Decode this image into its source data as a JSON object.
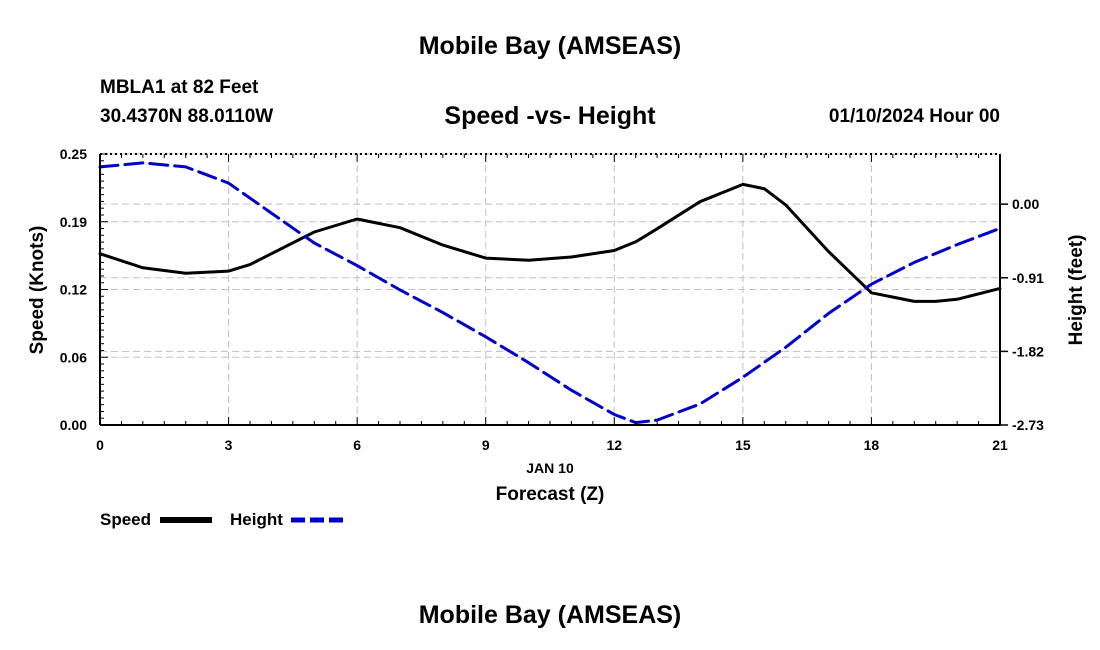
{
  "header": {
    "title": "Mobile Bay (AMSEAS)",
    "station": "MBLA1 at 82 Feet",
    "coords": "30.4370N  88.0110W",
    "chart_title": "Speed -vs- Height",
    "timestamp": "01/10/2024 Hour 00"
  },
  "footer": {
    "title": "Mobile Bay (AMSEAS)"
  },
  "chart_data": {
    "type": "line",
    "title": "Speed -vs- Height",
    "xlabel": "Forecast (Z)",
    "xlabel_date": "JAN 10",
    "ylabel": "Speed (Knots)",
    "y2label": "Height (feet)",
    "xlim": [
      0,
      21
    ],
    "ylim": [
      0,
      0.25
    ],
    "y2lim": [
      -2.73,
      0.62
    ],
    "x_ticks": [
      "0",
      "3",
      "6",
      "9",
      "12",
      "15",
      "18",
      "21"
    ],
    "y_ticks": [
      "0.00",
      "0.06",
      "0.12",
      "0.19",
      "0.25"
    ],
    "y_tick_values": [
      0,
      0.0625,
      0.125,
      0.1875,
      0.25
    ],
    "y2_ticks": [
      "0.00",
      "-0.91",
      "-1.82",
      "-2.73"
    ],
    "y2_tick_values": [
      0,
      -0.91,
      -1.82,
      -2.73
    ],
    "grid": true,
    "legend_position": "bottom-left",
    "series": [
      {
        "name": "Speed",
        "axis": "left",
        "color": "#000000",
        "style": "solid",
        "x": [
          0,
          1,
          2,
          3,
          3.5,
          4,
          5,
          6,
          7,
          8,
          9,
          10,
          11,
          12,
          12.5,
          13,
          14,
          15,
          15.5,
          16,
          17,
          18,
          19,
          19.5,
          20,
          21
        ],
        "values": [
          0.158,
          0.145,
          0.14,
          0.142,
          0.148,
          0.158,
          0.178,
          0.19,
          0.182,
          0.166,
          0.154,
          0.152,
          0.155,
          0.161,
          0.169,
          0.181,
          0.206,
          0.222,
          0.218,
          0.203,
          0.16,
          0.122,
          0.114,
          0.114,
          0.116,
          0.126
        ]
      },
      {
        "name": "Height",
        "axis": "right",
        "color": "#0000cc",
        "style": "dashed",
        "x": [
          0,
          1,
          2,
          3,
          4,
          5,
          6,
          7,
          8,
          9,
          10,
          11,
          12,
          12.5,
          13,
          14,
          15,
          16,
          17,
          18,
          19,
          20,
          21
        ],
        "values": [
          0.46,
          0.51,
          0.46,
          0.26,
          -0.11,
          -0.48,
          -0.76,
          -1.06,
          -1.34,
          -1.64,
          -1.96,
          -2.3,
          -2.6,
          -2.7,
          -2.67,
          -2.47,
          -2.14,
          -1.77,
          -1.35,
          -0.99,
          -0.72,
          -0.5,
          -0.3
        ]
      }
    ]
  }
}
